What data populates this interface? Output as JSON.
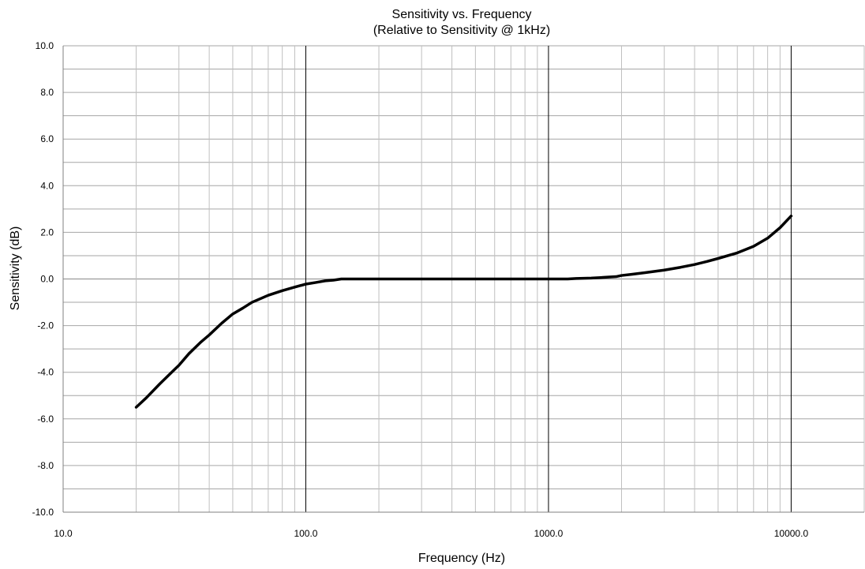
{
  "chart_data": {
    "type": "line",
    "title_line1": "Sensitivity vs. Frequency",
    "title_line2": "(Relative to Sensitivity @ 1kHz)",
    "xlabel": "Frequency (Hz)",
    "ylabel": "Sensitivity (dB)",
    "x_scale": "log",
    "xlim": [
      10,
      20000
    ],
    "ylim": [
      -10,
      10
    ],
    "x_tick_labels": [
      "10.0",
      "100.0",
      "1000.0",
      "10000.0"
    ],
    "y_tick_labels": [
      "10.0",
      "8.0",
      "6.0",
      "4.0",
      "2.0",
      "0.0",
      "-2.0",
      "-4.0",
      "-6.0",
      "-8.0",
      "-10.0"
    ],
    "grid": true,
    "series_color": "#000000",
    "series": [
      {
        "x": [
          20,
          22,
          25,
          28,
          30,
          33,
          37,
          40,
          45,
          50,
          55,
          60,
          70,
          80,
          90,
          100,
          110,
          120,
          130,
          140,
          200,
          500,
          1000,
          1200,
          1300,
          1500,
          1700,
          1900,
          2000,
          2200,
          2500,
          3000,
          3500,
          4000,
          4500,
          5000,
          6000,
          7000,
          8000,
          9000,
          10000
        ],
        "y": [
          -5.5,
          -5.1,
          -4.5,
          -4.0,
          -3.7,
          -3.2,
          -2.7,
          -2.4,
          -1.9,
          -1.5,
          -1.25,
          -1.0,
          -0.7,
          -0.5,
          -0.35,
          -0.22,
          -0.15,
          -0.08,
          -0.05,
          0.0,
          0.0,
          0.0,
          0.0,
          0.0,
          0.02,
          0.04,
          0.07,
          0.1,
          0.15,
          0.2,
          0.27,
          0.38,
          0.5,
          0.62,
          0.75,
          0.88,
          1.12,
          1.4,
          1.75,
          2.2,
          2.7
        ]
      }
    ]
  }
}
